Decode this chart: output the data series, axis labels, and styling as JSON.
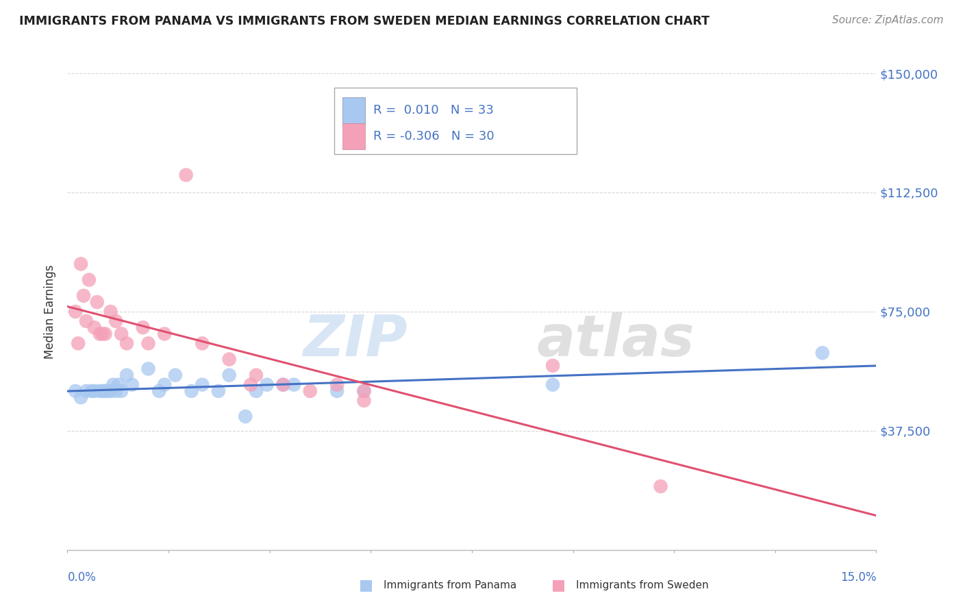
{
  "title": "IMMIGRANTS FROM PANAMA VS IMMIGRANTS FROM SWEDEN MEDIAN EARNINGS CORRELATION CHART",
  "source": "Source: ZipAtlas.com",
  "ylabel": "Median Earnings",
  "xmin": 0.0,
  "xmax": 15.0,
  "ymin": 0,
  "ymax": 150000,
  "yticks": [
    0,
    37500,
    75000,
    112500,
    150000
  ],
  "ytick_labels": [
    "",
    "$37,500",
    "$75,000",
    "$112,500",
    "$150,000"
  ],
  "legend_box": {
    "r_panama": "0.010",
    "n_panama": "33",
    "r_sweden": "-0.306",
    "n_sweden": "30"
  },
  "watermark_zip": "ZIP",
  "watermark_atlas": "atlas",
  "panama_color": "#a8c8f0",
  "sweden_color": "#f4a0b8",
  "panama_line_color": "#4472c4",
  "sweden_line_color": "#e05070",
  "panama_points": [
    [
      0.15,
      50000
    ],
    [
      0.25,
      48000
    ],
    [
      0.35,
      50000
    ],
    [
      0.45,
      50000
    ],
    [
      0.5,
      50000
    ],
    [
      0.6,
      50000
    ],
    [
      0.65,
      50000
    ],
    [
      0.7,
      50000
    ],
    [
      0.75,
      50000
    ],
    [
      0.8,
      50000
    ],
    [
      0.85,
      52000
    ],
    [
      0.9,
      50000
    ],
    [
      0.95,
      52000
    ],
    [
      1.0,
      50000
    ],
    [
      1.1,
      55000
    ],
    [
      1.2,
      52000
    ],
    [
      1.5,
      57000
    ],
    [
      1.7,
      50000
    ],
    [
      1.8,
      52000
    ],
    [
      2.0,
      55000
    ],
    [
      2.3,
      50000
    ],
    [
      2.5,
      52000
    ],
    [
      2.8,
      50000
    ],
    [
      3.0,
      55000
    ],
    [
      3.3,
      42000
    ],
    [
      3.5,
      50000
    ],
    [
      3.7,
      52000
    ],
    [
      4.0,
      52000
    ],
    [
      4.2,
      52000
    ],
    [
      5.0,
      50000
    ],
    [
      5.5,
      50000
    ],
    [
      9.0,
      52000
    ],
    [
      14.0,
      62000
    ]
  ],
  "sweden_points": [
    [
      0.15,
      75000
    ],
    [
      0.2,
      65000
    ],
    [
      0.25,
      90000
    ],
    [
      0.3,
      80000
    ],
    [
      0.35,
      72000
    ],
    [
      0.4,
      85000
    ],
    [
      0.5,
      70000
    ],
    [
      0.55,
      78000
    ],
    [
      0.6,
      68000
    ],
    [
      0.65,
      68000
    ],
    [
      0.7,
      68000
    ],
    [
      0.8,
      75000
    ],
    [
      0.9,
      72000
    ],
    [
      1.0,
      68000
    ],
    [
      1.1,
      65000
    ],
    [
      1.4,
      70000
    ],
    [
      1.5,
      65000
    ],
    [
      1.8,
      68000
    ],
    [
      2.2,
      118000
    ],
    [
      2.5,
      65000
    ],
    [
      3.0,
      60000
    ],
    [
      3.4,
      52000
    ],
    [
      3.5,
      55000
    ],
    [
      4.0,
      52000
    ],
    [
      4.5,
      50000
    ],
    [
      5.0,
      52000
    ],
    [
      5.5,
      50000
    ],
    [
      5.5,
      47000
    ],
    [
      9.0,
      58000
    ],
    [
      11.0,
      20000
    ]
  ],
  "background_color": "#ffffff",
  "grid_color": "#cccccc",
  "title_color": "#222222",
  "tick_color": "#4472c4"
}
